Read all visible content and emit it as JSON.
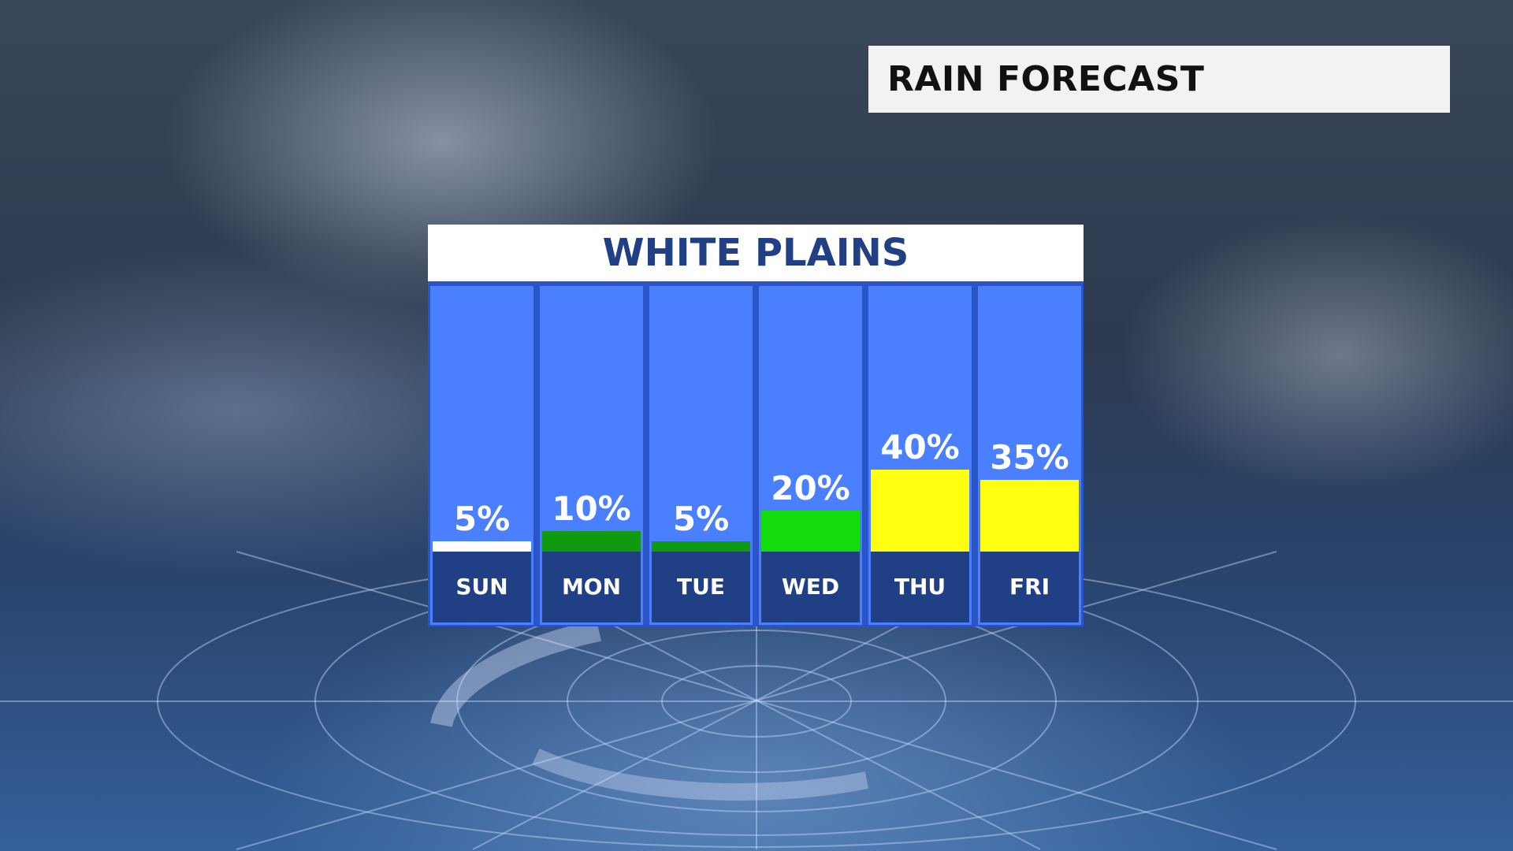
{
  "header": {
    "title": "RAIN FORECAST"
  },
  "chart_data": {
    "type": "bar",
    "title": "WHITE PLAINS",
    "categories": [
      "SUN",
      "MON",
      "TUE",
      "WED",
      "THU",
      "FRI"
    ],
    "values": [
      5,
      10,
      5,
      20,
      40,
      35
    ],
    "labels": [
      "5%",
      "10%",
      "5%",
      "20%",
      "40%",
      "35%"
    ],
    "colors": [
      "#ffffff",
      "#0f9a10",
      "#0f9a10",
      "#12dc0c",
      "#ffff10",
      "#ffff10"
    ],
    "ylim": [
      0,
      100
    ]
  }
}
